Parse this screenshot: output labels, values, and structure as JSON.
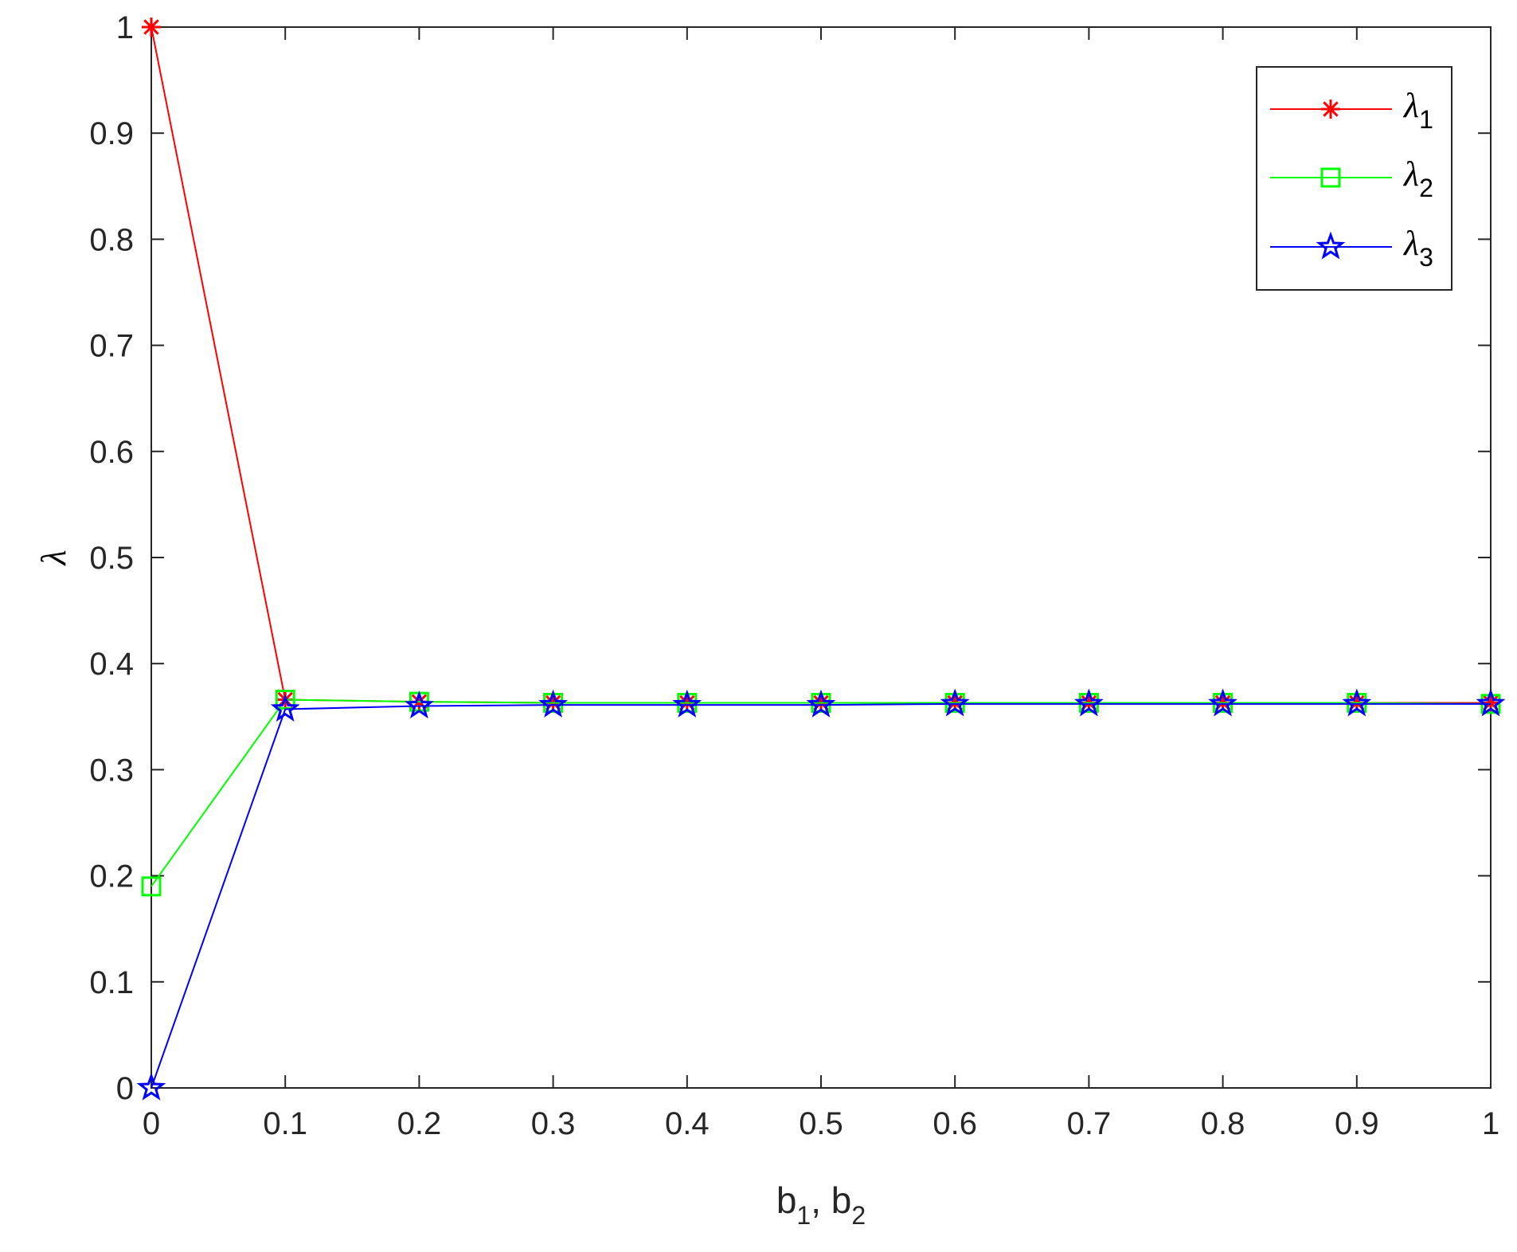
{
  "chart_data": {
    "type": "line",
    "title": "",
    "xlabel": {
      "base": "b",
      "sub1": "1",
      "sep": ", ",
      "base2": "b",
      "sub2": "2"
    },
    "ylabel": "λ",
    "xlim": [
      0,
      1
    ],
    "ylim": [
      0,
      1
    ],
    "xticks": [
      "0",
      "0.1",
      "0.2",
      "0.3",
      "0.4",
      "0.5",
      "0.6",
      "0.7",
      "0.8",
      "0.9",
      "1"
    ],
    "yticks": [
      "0",
      "0.1",
      "0.2",
      "0.3",
      "0.4",
      "0.5",
      "0.6",
      "0.7",
      "0.8",
      "0.9",
      "1"
    ],
    "grid": false,
    "legend_position": "top-right",
    "x": [
      0,
      0.1,
      0.2,
      0.3,
      0.4,
      0.5,
      0.6,
      0.7,
      0.8,
      0.9,
      1.0
    ],
    "series": [
      {
        "name": "λ",
        "sub": "1",
        "color": "#ff0000",
        "marker": "asterisk",
        "values": [
          1.0,
          0.366,
          0.364,
          0.363,
          0.363,
          0.363,
          0.363,
          0.363,
          0.363,
          0.363,
          0.363
        ]
      },
      {
        "name": "λ",
        "sub": "2",
        "color": "#00ff00",
        "marker": "square",
        "values": [
          0.19,
          0.366,
          0.364,
          0.363,
          0.363,
          0.363,
          0.363,
          0.363,
          0.363,
          0.363,
          0.362
        ]
      },
      {
        "name": "λ",
        "sub": "3",
        "color": "#0000ff",
        "marker": "pentagram",
        "values": [
          0.0,
          0.357,
          0.36,
          0.361,
          0.361,
          0.361,
          0.362,
          0.362,
          0.362,
          0.362,
          0.362
        ]
      }
    ]
  }
}
